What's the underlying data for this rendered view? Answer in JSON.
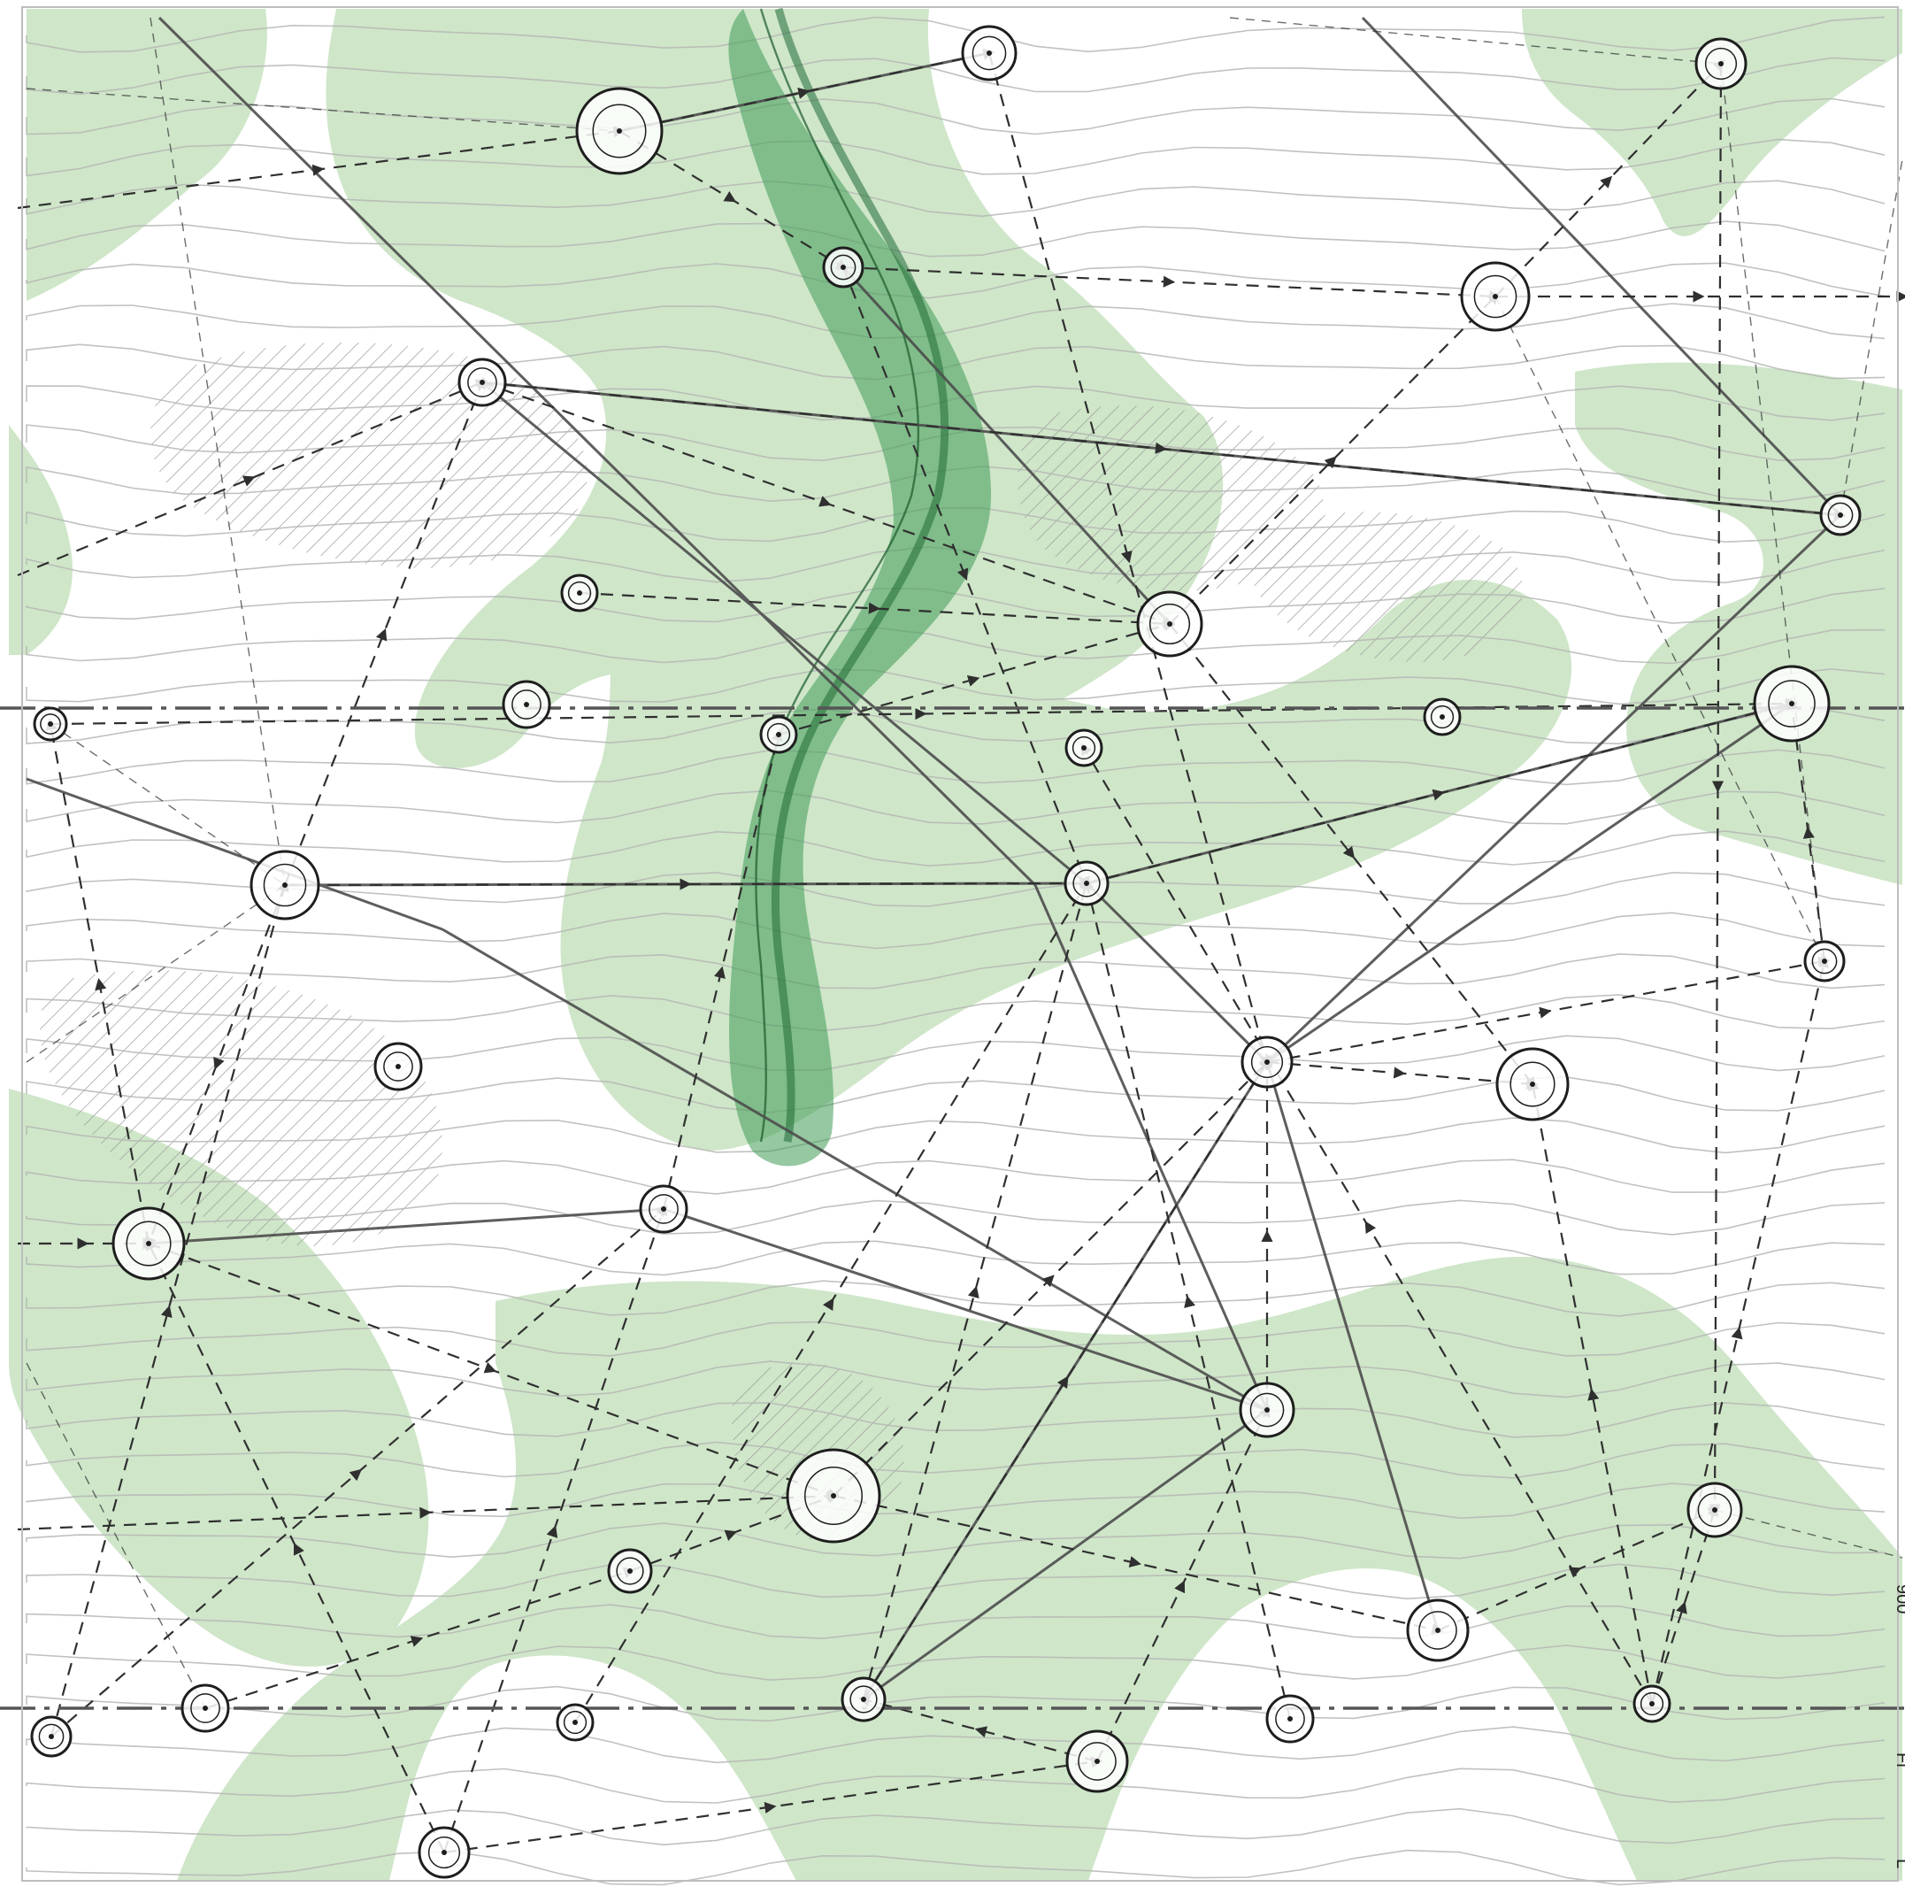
{
  "diagram": {
    "colors": {
      "background": "#ffffff",
      "vegetation_light": "#cfe6c9",
      "vegetation_mid": "#b6dbb0",
      "corridor": "#2e8b46",
      "corridor_dark": "#1f6a34",
      "contour": "#b5b8b5",
      "path": "#4d4d4d",
      "axis": "#555555",
      "arrow": "#2f2f2f",
      "node_ring": "#1e1e1e"
    },
    "legend": [],
    "edge_text": [
      "900",
      "Fi",
      "L"
    ]
  }
}
